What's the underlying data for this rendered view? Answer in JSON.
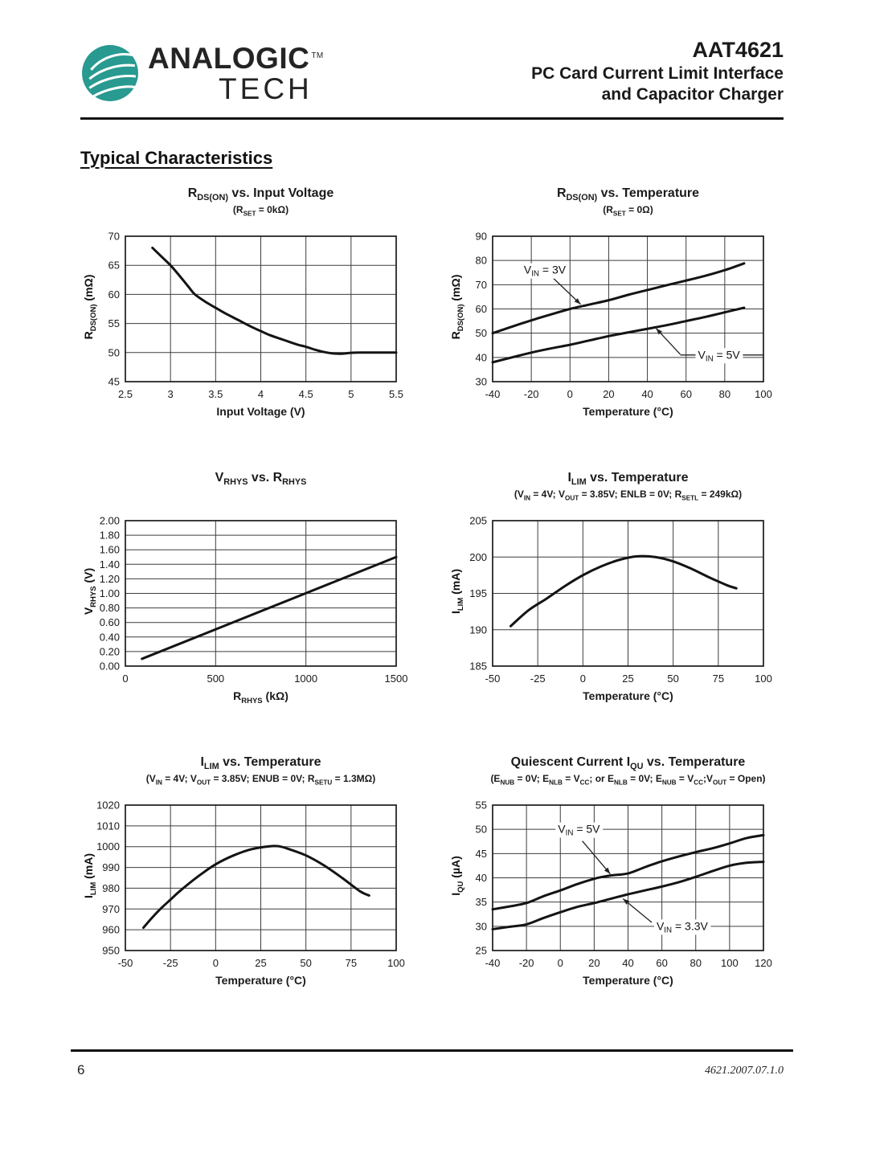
{
  "header": {
    "logo": {
      "brand_top": "ANALOGIC",
      "trademark": "TM",
      "brand_bottom": "TECH",
      "mark_color": "#289a90",
      "mark_icon": "analogictech-leaf-mark"
    },
    "part_number": "AAT4621",
    "subtitle_lines": [
      "PC Card Current Limit Interface",
      "and Capacitor Charger"
    ]
  },
  "section_title": "Typical Characteristics",
  "footer": {
    "page_number": "6",
    "doc_code": "4621.2007.07.1.0"
  },
  "styles": {
    "line_color": "#141414",
    "grid_color": "#3d3d3d",
    "text_color": "#1a1a1a"
  },
  "chart_data": [
    {
      "id": "rdson-vs-input-voltage",
      "type": "line",
      "title": "R_{DS(ON)} vs. Input Voltage",
      "subtitle": "(R_{SET} = 0kΩ)",
      "xlabel": "Input Voltage (V)",
      "ylabel": "R_{DS(ON)} (mΩ)",
      "xlim": [
        2.5,
        5.5
      ],
      "ylim": [
        45,
        70
      ],
      "grid": true,
      "legend": "none",
      "x_ticks": [
        2.5,
        3,
        3.5,
        4,
        4.5,
        5,
        5.5
      ],
      "x_tick_labels": [
        "2.5",
        "3",
        "3.5",
        "4",
        "4.5",
        "5",
        "5.5"
      ],
      "y_ticks": [
        45,
        50,
        55,
        60,
        65,
        70
      ],
      "y_tick_labels": [
        "45",
        "50",
        "55",
        "60",
        "65",
        "70"
      ],
      "series": [
        {
          "name": "RDS(ON)",
          "points": [
            [
              2.8,
              68
            ],
            [
              2.9,
              66.5
            ],
            [
              3,
              65
            ],
            [
              3.1,
              63.2
            ],
            [
              3.2,
              61.3
            ],
            [
              3.27,
              60
            ],
            [
              3.4,
              58.6
            ],
            [
              3.5,
              57.7
            ],
            [
              3.6,
              56.8
            ],
            [
              3.75,
              55.6
            ],
            [
              3.9,
              54.4
            ],
            [
              4,
              53.7
            ],
            [
              4.1,
              53
            ],
            [
              4.25,
              52.2
            ],
            [
              4.4,
              51.4
            ],
            [
              4.5,
              51
            ],
            [
              4.6,
              50.5
            ],
            [
              4.7,
              50.1
            ],
            [
              4.8,
              49.85
            ],
            [
              4.9,
              49.8
            ],
            [
              5,
              49.95
            ],
            [
              5.1,
              50
            ],
            [
              5.5,
              50
            ]
          ]
        }
      ],
      "annotations": []
    },
    {
      "id": "rdson-vs-temperature",
      "type": "line",
      "title": "R_{DS(ON)} vs. Temperature",
      "subtitle": "(R_{SET} = 0Ω)",
      "xlabel": "Temperature (°C)",
      "ylabel": "R_{DS(ON)} (mΩ)",
      "xlim": [
        -40,
        100
      ],
      "ylim": [
        30,
        90
      ],
      "grid": true,
      "legend": "inline-annotations",
      "x_ticks": [
        -40,
        -20,
        0,
        20,
        40,
        60,
        80,
        100
      ],
      "x_tick_labels": [
        "-40",
        "-20",
        "0",
        "20",
        "40",
        "60",
        "80",
        "100"
      ],
      "y_ticks": [
        30,
        40,
        50,
        60,
        70,
        80,
        90
      ],
      "y_tick_labels": [
        "30",
        "40",
        "50",
        "60",
        "70",
        "80",
        "90"
      ],
      "series": [
        {
          "name": "VIN = 3V",
          "points": [
            [
              -40,
              50
            ],
            [
              -30,
              52.7
            ],
            [
              -20,
              55.3
            ],
            [
              -10,
              57.7
            ],
            [
              0,
              60
            ],
            [
              10,
              61.8
            ],
            [
              20,
              63.6
            ],
            [
              30,
              65.8
            ],
            [
              40,
              67.8
            ],
            [
              50,
              69.8
            ],
            [
              60,
              71.7
            ],
            [
              70,
              73.7
            ],
            [
              80,
              76
            ],
            [
              90,
              78.8
            ]
          ]
        },
        {
          "name": "VIN = 5V",
          "points": [
            [
              -40,
              38
            ],
            [
              -30,
              40
            ],
            [
              -20,
              42
            ],
            [
              -10,
              43.7
            ],
            [
              0,
              45.2
            ],
            [
              10,
              47
            ],
            [
              20,
              48.8
            ],
            [
              30,
              50.3
            ],
            [
              40,
              51.8
            ],
            [
              50,
              53.3
            ],
            [
              60,
              55
            ],
            [
              70,
              56.7
            ],
            [
              80,
              58.6
            ],
            [
              90,
              60.5
            ]
          ]
        }
      ],
      "annotations": [
        {
          "text": "V_{IN} = 3V",
          "x": -13,
          "y": 76,
          "lines": [
            {
              "x1": -8.5,
              "y1": 72.6,
              "x2": 5.5,
              "y2": 61.9,
              "arrow": true
            }
          ]
        },
        {
          "text": "V_{IN} = 5V",
          "x": 77,
          "y": 41,
          "lines": [
            {
              "x1": 57,
              "y1": 41,
              "x2": 100,
              "y2": 41,
              "arrow": false
            },
            {
              "x1": 57,
              "y1": 41.3,
              "x2": 44.5,
              "y2": 52,
              "arrow": true
            }
          ]
        }
      ]
    },
    {
      "id": "vrhys-vs-rrhys",
      "type": "line",
      "title": "V_{RHYS} vs. R_{RHYS}",
      "subtitle": "",
      "xlabel": "R_{RHYS} (kΩ)",
      "ylabel": "V_{RHYS} (V)",
      "xlim": [
        0,
        1500
      ],
      "ylim": [
        0,
        2
      ],
      "grid": true,
      "legend": "none",
      "x_ticks": [
        0,
        500,
        1000,
        1500
      ],
      "x_tick_labels": [
        "0",
        "500",
        "1000",
        "1500"
      ],
      "y_ticks": [
        0,
        0.2,
        0.4,
        0.6,
        0.8,
        1,
        1.2,
        1.4,
        1.6,
        1.8,
        2
      ],
      "y_tick_labels": [
        "0.00",
        "0.20",
        "0.40",
        "0.60",
        "0.80",
        "1.00",
        "1.20",
        "1.40",
        "1.60",
        "1.80",
        "2.00"
      ],
      "series": [
        {
          "name": "VRHYS",
          "points": [
            [
              92,
              0.1
            ],
            [
              1500,
              1.5
            ]
          ]
        }
      ],
      "annotations": []
    },
    {
      "id": "ilim-lower-vs-temperature",
      "type": "line",
      "title": "I_{LIM} vs. Temperature",
      "subtitle": "(V_{IN} = 4V; V_{OUT} = 3.85V; ENLB = 0V; R_{SETL} = 249kΩ)",
      "xlabel": "Temperature (°C)",
      "ylabel": "I_{LIM} (mA)",
      "xlim": [
        -50,
        100
      ],
      "ylim": [
        185,
        205
      ],
      "grid": true,
      "legend": "none",
      "x_ticks": [
        -50,
        -25,
        0,
        25,
        50,
        75,
        100
      ],
      "x_tick_labels": [
        "-50",
        "-25",
        "0",
        "25",
        "50",
        "75",
        "100"
      ],
      "y_ticks": [
        185,
        190,
        195,
        200,
        205
      ],
      "y_tick_labels": [
        "185",
        "190",
        "195",
        "200",
        "205"
      ],
      "series": [
        {
          "name": "ILIM",
          "points": [
            [
              -40,
              190.5
            ],
            [
              -30,
              192.7
            ],
            [
              -20,
              194.3
            ],
            [
              -10,
              196
            ],
            [
              0,
              197.5
            ],
            [
              10,
              198.7
            ],
            [
              20,
              199.6
            ],
            [
              30,
              200.1
            ],
            [
              40,
              200
            ],
            [
              50,
              199.4
            ],
            [
              60,
              198.4
            ],
            [
              70,
              197.2
            ],
            [
              80,
              196.1
            ],
            [
              85,
              195.7
            ]
          ]
        }
      ],
      "annotations": []
    },
    {
      "id": "ilim-upper-vs-temperature",
      "type": "line",
      "title": "I_{LIM} vs. Temperature",
      "subtitle": "(V_{IN} = 4V; V_{OUT} = 3.85V; ENUB = 0V; R_{SETU} = 1.3MΩ)",
      "xlabel": "Temperature (°C)",
      "ylabel": "I_{LIM} (mA)",
      "xlim": [
        -50,
        100
      ],
      "ylim": [
        950,
        1020
      ],
      "grid": true,
      "legend": "none",
      "x_ticks": [
        -50,
        -25,
        0,
        25,
        50,
        75,
        100
      ],
      "x_tick_labels": [
        "-50",
        "-25",
        "0",
        "25",
        "50",
        "75",
        "100"
      ],
      "y_ticks": [
        950,
        960,
        970,
        980,
        990,
        1000,
        1010,
        1020
      ],
      "y_tick_labels": [
        "950",
        "960",
        "970",
        "980",
        "990",
        "1000",
        "1010",
        "1020"
      ],
      "series": [
        {
          "name": "ILIM",
          "points": [
            [
              -40,
              961
            ],
            [
              -35,
              966
            ],
            [
              -30,
              970.5
            ],
            [
              -25,
              974.5
            ],
            [
              -20,
              978.5
            ],
            [
              -10,
              985.5
            ],
            [
              0,
              991.5
            ],
            [
              10,
              995.8
            ],
            [
              20,
              998.8
            ],
            [
              30,
              1000.2
            ],
            [
              35,
              1000.2
            ],
            [
              40,
              999
            ],
            [
              50,
              995.8
            ],
            [
              60,
              991
            ],
            [
              70,
              985
            ],
            [
              80,
              978.5
            ],
            [
              85,
              976.5
            ]
          ]
        }
      ],
      "annotations": []
    },
    {
      "id": "iqu-vs-temperature",
      "type": "line",
      "title": "Quiescent Current I_{QU} vs. Temperature",
      "subtitle": "(E_{NUB} = 0V; E_{NLB} = V_{CC}; or E_{NLB} = 0V; E_{NUB} = V_{CC};V_{OUT} = Open)",
      "xlabel": "Temperature (°C)",
      "ylabel": "I_{QU} (µA)",
      "xlim": [
        -40,
        120
      ],
      "ylim": [
        25,
        55
      ],
      "grid": true,
      "legend": "inline-annotations",
      "x_ticks": [
        -40,
        -20,
        0,
        20,
        40,
        60,
        80,
        100,
        120
      ],
      "x_tick_labels": [
        "-40",
        "-20",
        "0",
        "20",
        "40",
        "60",
        "80",
        "100",
        "120"
      ],
      "y_ticks": [
        25,
        30,
        35,
        40,
        45,
        50,
        55
      ],
      "y_tick_labels": [
        "25",
        "30",
        "35",
        "40",
        "45",
        "50",
        "55"
      ],
      "series": [
        {
          "name": "VIN = 5V",
          "points": [
            [
              -40,
              33.5
            ],
            [
              -30,
              34.1
            ],
            [
              -20,
              34.8
            ],
            [
              -10,
              36.2
            ],
            [
              0,
              37.4
            ],
            [
              10,
              38.7
            ],
            [
              20,
              39.8
            ],
            [
              25,
              40.2
            ],
            [
              30,
              40.5
            ],
            [
              40,
              40.9
            ],
            [
              50,
              42.2
            ],
            [
              60,
              43.4
            ],
            [
              70,
              44.4
            ],
            [
              80,
              45.3
            ],
            [
              90,
              46.1
            ],
            [
              100,
              47.1
            ],
            [
              110,
              48.2
            ],
            [
              120,
              48.8
            ]
          ]
        },
        {
          "name": "VIN = 3.3V",
          "points": [
            [
              -40,
              29.4
            ],
            [
              -30,
              29.9
            ],
            [
              -20,
              30.4
            ],
            [
              -10,
              31.7
            ],
            [
              0,
              32.9
            ],
            [
              10,
              34
            ],
            [
              20,
              34.8
            ],
            [
              30,
              35.7
            ],
            [
              40,
              36.6
            ],
            [
              50,
              37.4
            ],
            [
              60,
              38.2
            ],
            [
              70,
              39.1
            ],
            [
              80,
              40.2
            ],
            [
              90,
              41.4
            ],
            [
              100,
              42.5
            ],
            [
              110,
              43.1
            ],
            [
              120,
              43.3
            ]
          ]
        }
      ],
      "annotations": [
        {
          "text": "V_{IN} = 5V",
          "x": 11,
          "y": 50,
          "lines": [
            {
              "x1": 13,
              "y1": 47.6,
              "x2": 29.5,
              "y2": 40.8,
              "arrow": true
            }
          ]
        },
        {
          "text": "V_{IN} = 3.3V",
          "x": 72,
          "y": 30,
          "lines": [
            {
              "x1": 54,
              "y1": 30.8,
              "x2": 37,
              "y2": 35.7,
              "arrow": true
            }
          ]
        }
      ]
    }
  ]
}
